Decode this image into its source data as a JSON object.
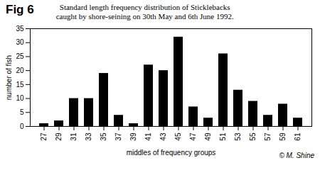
{
  "chart_data": {
    "type": "bar",
    "fig_label": "Fig 6",
    "title": "Standard length frequency distribution of Sticklebacks caught by shore-seining on 30th May and 6th June 1992.",
    "x_label": "middles of frequency groups",
    "y_label": "number of fish",
    "caption": "© M. Shine",
    "categories": [
      27,
      29,
      31,
      33,
      35,
      37,
      39,
      41,
      43,
      45,
      47,
      49,
      51,
      53,
      55,
      57,
      59,
      61
    ],
    "values": [
      1,
      2,
      10,
      10,
      19,
      4,
      1,
      22,
      20,
      32,
      7,
      3,
      26,
      13,
      9,
      4,
      8,
      3
    ],
    "color": "#000000",
    "ylim": [
      0,
      35
    ],
    "yticks": [
      0,
      5,
      10,
      15,
      20,
      25,
      30,
      35
    ],
    "grid": false
  }
}
